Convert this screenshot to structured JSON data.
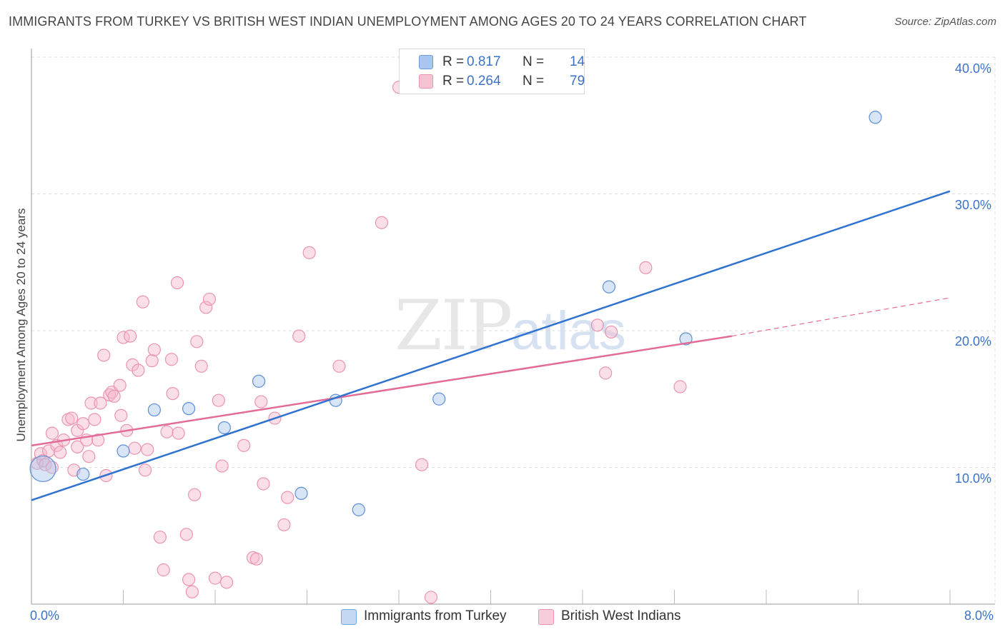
{
  "header": {
    "title": "IMMIGRANTS FROM TURKEY VS BRITISH WEST INDIAN UNEMPLOYMENT AMONG AGES 20 TO 24 YEARS CORRELATION CHART",
    "source": "Source: ZipAtlas.com"
  },
  "watermark": {
    "zip": "ZIP",
    "atlas": "atlas"
  },
  "legend": {
    "r_label": "R =",
    "n_label": "N =",
    "turkey_r": "0.817",
    "turkey_n": "14",
    "bwi_r": "0.264",
    "bwi_n": "79"
  },
  "bottom_legend": {
    "turkey": "Immigrants from Turkey",
    "bwi": "British West Indians"
  },
  "colors": {
    "turkey_fill": "#a9c6ee",
    "turkey_line": "#2f72cf",
    "bwi_fill": "#f6b7cb",
    "bwi_line": "#e26b97",
    "accent_text": "#3a72c9"
  },
  "chart_data": {
    "type": "scatter",
    "title": "IMMIGRANTS FROM TURKEY VS BRITISH WEST INDIAN UNEMPLOYMENT AMONG AGES 20 TO 24 YEARS CORRELATION CHART",
    "xlabel": "",
    "ylabel": "Unemployment Among Ages 20 to 24 years",
    "xlim": [
      0,
      8
    ],
    "ylim": [
      0,
      40.5
    ],
    "x_tick_labels": [
      "0.0%",
      "8.0%"
    ],
    "y_tick_values": [
      10,
      20,
      30,
      40
    ],
    "y_tick_labels": [
      "10.0%",
      "20.0%",
      "30.0%",
      "40.0%"
    ],
    "grid": true,
    "series": [
      {
        "name": "Immigrants from Turkey",
        "key": "turkey",
        "trend": {
          "x0": 0,
          "y0": 7.6,
          "x1": 8,
          "y1": 30.2
        },
        "points": [
          {
            "x": 0.1,
            "y": 9.9,
            "big": true
          },
          {
            "x": 0.45,
            "y": 9.5
          },
          {
            "x": 0.8,
            "y": 11.2
          },
          {
            "x": 1.07,
            "y": 14.2
          },
          {
            "x": 1.37,
            "y": 14.3
          },
          {
            "x": 1.68,
            "y": 12.9
          },
          {
            "x": 1.98,
            "y": 16.3
          },
          {
            "x": 2.35,
            "y": 8.1
          },
          {
            "x": 2.65,
            "y": 14.9
          },
          {
            "x": 2.85,
            "y": 6.9
          },
          {
            "x": 3.55,
            "y": 15.0
          },
          {
            "x": 5.03,
            "y": 23.2
          },
          {
            "x": 5.7,
            "y": 19.4
          },
          {
            "x": 7.35,
            "y": 35.6
          }
        ]
      },
      {
        "name": "British West Indians",
        "key": "bwi",
        "trend": {
          "x0": 0,
          "y0": 11.6,
          "x1": 6.1,
          "y1": 19.6
        },
        "trend_ext": {
          "x0": 6.1,
          "y0": 19.6,
          "x1": 8,
          "y1": 22.4
        },
        "points": [
          {
            "x": 0.05,
            "y": 10.3
          },
          {
            "x": 0.08,
            "y": 11.0
          },
          {
            "x": 0.1,
            "y": 10.5
          },
          {
            "x": 0.12,
            "y": 10.2
          },
          {
            "x": 0.15,
            "y": 11.2
          },
          {
            "x": 0.18,
            "y": 10.0
          },
          {
            "x": 0.18,
            "y": 12.5
          },
          {
            "x": 0.22,
            "y": 11.6
          },
          {
            "x": 0.25,
            "y": 11.1
          },
          {
            "x": 0.28,
            "y": 12.0
          },
          {
            "x": 0.32,
            "y": 13.5
          },
          {
            "x": 0.35,
            "y": 13.6
          },
          {
            "x": 0.37,
            "y": 9.8
          },
          {
            "x": 0.4,
            "y": 11.5
          },
          {
            "x": 0.4,
            "y": 12.7
          },
          {
            "x": 0.45,
            "y": 13.2
          },
          {
            "x": 0.48,
            "y": 12.0
          },
          {
            "x": 0.5,
            "y": 10.8
          },
          {
            "x": 0.52,
            "y": 14.7
          },
          {
            "x": 0.55,
            "y": 13.5
          },
          {
            "x": 0.58,
            "y": 12.0
          },
          {
            "x": 0.6,
            "y": 14.7
          },
          {
            "x": 0.63,
            "y": 18.2
          },
          {
            "x": 0.65,
            "y": 9.4
          },
          {
            "x": 0.68,
            "y": 15.3
          },
          {
            "x": 0.7,
            "y": 15.5
          },
          {
            "x": 0.72,
            "y": 15.2
          },
          {
            "x": 0.77,
            "y": 16.0
          },
          {
            "x": 0.78,
            "y": 13.8
          },
          {
            "x": 0.8,
            "y": 19.5
          },
          {
            "x": 0.83,
            "y": 12.7
          },
          {
            "x": 0.86,
            "y": 19.6
          },
          {
            "x": 0.88,
            "y": 17.5
          },
          {
            "x": 0.9,
            "y": 11.4
          },
          {
            "x": 0.93,
            "y": 17.1
          },
          {
            "x": 0.97,
            "y": 22.1
          },
          {
            "x": 0.99,
            "y": 9.8
          },
          {
            "x": 1.01,
            "y": 11.3
          },
          {
            "x": 1.05,
            "y": 17.8
          },
          {
            "x": 1.07,
            "y": 18.6
          },
          {
            "x": 1.12,
            "y": 4.9
          },
          {
            "x": 1.15,
            "y": 2.5
          },
          {
            "x": 1.18,
            "y": 12.6
          },
          {
            "x": 1.22,
            "y": 17.9
          },
          {
            "x": 1.23,
            "y": 15.4
          },
          {
            "x": 1.27,
            "y": 23.5
          },
          {
            "x": 1.28,
            "y": 12.5
          },
          {
            "x": 1.35,
            "y": 5.1
          },
          {
            "x": 1.37,
            "y": 1.8
          },
          {
            "x": 1.4,
            "y": 0.9
          },
          {
            "x": 1.42,
            "y": 8.0
          },
          {
            "x": 1.44,
            "y": 19.2
          },
          {
            "x": 1.48,
            "y": 17.4
          },
          {
            "x": 1.52,
            "y": 21.7
          },
          {
            "x": 1.55,
            "y": 22.3
          },
          {
            "x": 1.6,
            "y": 1.9
          },
          {
            "x": 1.63,
            "y": 14.9
          },
          {
            "x": 1.66,
            "y": 10.1
          },
          {
            "x": 1.7,
            "y": 1.6
          },
          {
            "x": 1.85,
            "y": 11.6
          },
          {
            "x": 1.93,
            "y": 3.4
          },
          {
            "x": 1.96,
            "y": 3.3
          },
          {
            "x": 2.0,
            "y": 14.8
          },
          {
            "x": 2.02,
            "y": 8.8
          },
          {
            "x": 2.12,
            "y": 13.6
          },
          {
            "x": 2.2,
            "y": 5.8
          },
          {
            "x": 2.23,
            "y": 7.8
          },
          {
            "x": 2.33,
            "y": 19.6
          },
          {
            "x": 2.42,
            "y": 25.7
          },
          {
            "x": 2.68,
            "y": 17.4
          },
          {
            "x": 3.05,
            "y": 27.9
          },
          {
            "x": 3.2,
            "y": 37.8
          },
          {
            "x": 3.4,
            "y": 10.2
          },
          {
            "x": 3.48,
            "y": 0.5
          },
          {
            "x": 4.93,
            "y": 20.4
          },
          {
            "x": 5.0,
            "y": 16.9
          },
          {
            "x": 5.05,
            "y": 19.9
          },
          {
            "x": 5.35,
            "y": 24.6
          },
          {
            "x": 5.65,
            "y": 15.9
          }
        ]
      }
    ]
  }
}
